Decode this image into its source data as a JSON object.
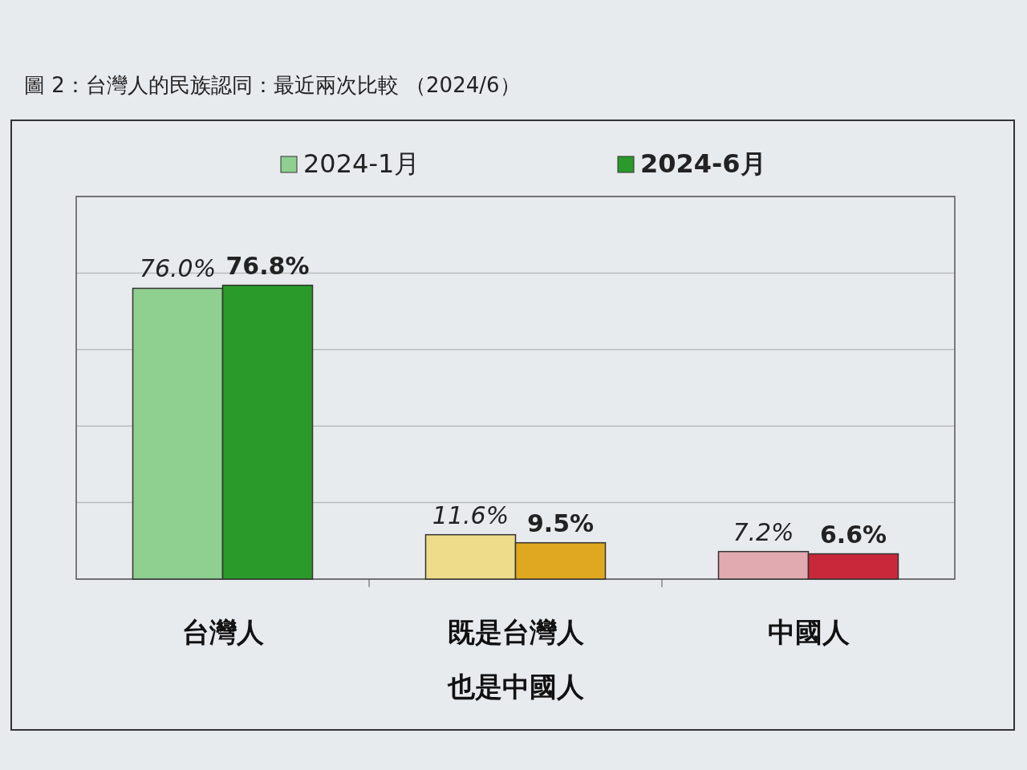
{
  "chart_data": {
    "type": "bar",
    "title": "圖 2：台灣人的民族認同：最近兩次比較 （2024/6）",
    "categories": [
      "台灣人",
      "既是台灣人也是中國人",
      "中國人"
    ],
    "series": [
      {
        "name": "2024-1月",
        "color": "#8fcf90",
        "colors": [
          "#8fcf90",
          "#eedc8a",
          "#e0aab0"
        ],
        "values": [
          76.0,
          11.6,
          7.2
        ],
        "value_labels": [
          "76.0%",
          "11.6%",
          "7.2%"
        ]
      },
      {
        "name": "2024-6月",
        "color": "#2a9a2a",
        "colors": [
          "#2a9a2a",
          "#e0a820",
          "#c8283a"
        ],
        "values": [
          76.8,
          9.5,
          6.6
        ],
        "value_labels": [
          "76.8%",
          "9.5%",
          "6.6%"
        ]
      }
    ],
    "ylim": [
      0,
      100
    ],
    "yticks": [
      {
        "value": 0,
        "label": null
      },
      {
        "value": 20,
        "label": null
      },
      {
        "value": 40,
        "label": null
      },
      {
        "value": 60,
        "label": null
      },
      {
        "value": 80,
        "label": null
      },
      {
        "value": 100,
        "label": null
      }
    ],
    "grid": "y",
    "legend": "top"
  }
}
